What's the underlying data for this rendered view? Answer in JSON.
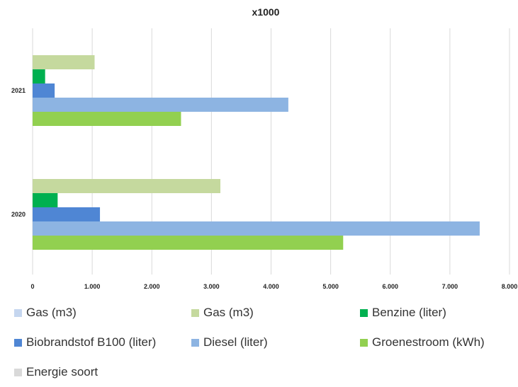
{
  "chart_data": {
    "type": "bar",
    "orientation": "horizontal",
    "title": "x1000",
    "categories": [
      "2021",
      "2020"
    ],
    "x_ticks": [
      "0",
      "1.000",
      "2.000",
      "3.000",
      "4.000",
      "5.000",
      "6.000",
      "7.000",
      "8.000"
    ],
    "xlim": [
      0,
      8000
    ],
    "grid": true,
    "legend_position": "bottom",
    "series": [
      {
        "name": "Gas (m3)",
        "color": "#c5d99e",
        "values": [
          1040,
          3150
        ]
      },
      {
        "name": "Benzine (liter)",
        "color": "#00b050",
        "values": [
          210,
          420
        ]
      },
      {
        "name": "Biobrandstof B100 (liter)",
        "color": "#4f86d4",
        "values": [
          370,
          1130
        ]
      },
      {
        "name": "Diesel (liter)",
        "color": "#8db4e2",
        "values": [
          4290,
          7500
        ]
      },
      {
        "name": "Groenestroom (kWh)",
        "color": "#92d050",
        "values": [
          2490,
          5210
        ]
      }
    ],
    "legend": [
      {
        "label": "Gas (m3)",
        "color": "#c5d6ef"
      },
      {
        "label": "Gas (m3)",
        "color": "#c5d99e"
      },
      {
        "label": "Benzine (liter)",
        "color": "#00b050"
      },
      {
        "label": "Biobrandstof B100 (liter)",
        "color": "#4f86d4"
      },
      {
        "label": "Diesel (liter)",
        "color": "#8db4e2"
      },
      {
        "label": "Groenestroom (kWh)",
        "color": "#92d050"
      },
      {
        "label": "Energie soort",
        "color": "#d9d9d9"
      }
    ]
  }
}
